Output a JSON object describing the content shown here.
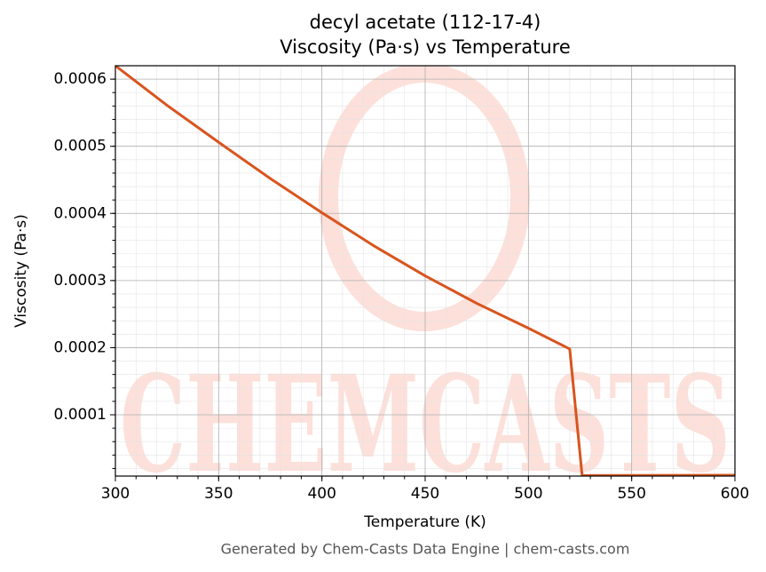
{
  "chart_data": {
    "type": "line",
    "title": "decyl acetate (112-17-4)",
    "subtitle": "Viscosity (Pa·s) vs Temperature",
    "x_label": "Temperature (K)",
    "y_label": "Viscosity (Pa·s)",
    "watermark": "CHEMCASTS",
    "footer": "Generated by Chem-Casts Data Engine | chem-casts.com",
    "x": [
      300,
      325,
      350,
      375,
      400,
      425,
      450,
      475,
      500,
      520,
      526,
      550,
      600
    ],
    "series": [
      {
        "name": "Viscosity",
        "color": "#d9541e",
        "values": [
          0.00062,
          0.000561,
          0.000506,
          0.000452,
          0.000401,
          0.000352,
          0.000307,
          0.000266,
          0.000229,
          0.000198,
          9.5e-06,
          9.7e-06,
          1e-05
        ]
      }
    ],
    "xlim": [
      300,
      600
    ],
    "xticks": [
      300,
      350,
      400,
      450,
      500,
      550,
      600
    ],
    "ylim": [
      8.7e-06,
      0.00062
    ],
    "yticks": [
      0.0001,
      0.0002,
      0.0003,
      0.0004,
      0.0005,
      0.0006
    ],
    "grid": true
  }
}
